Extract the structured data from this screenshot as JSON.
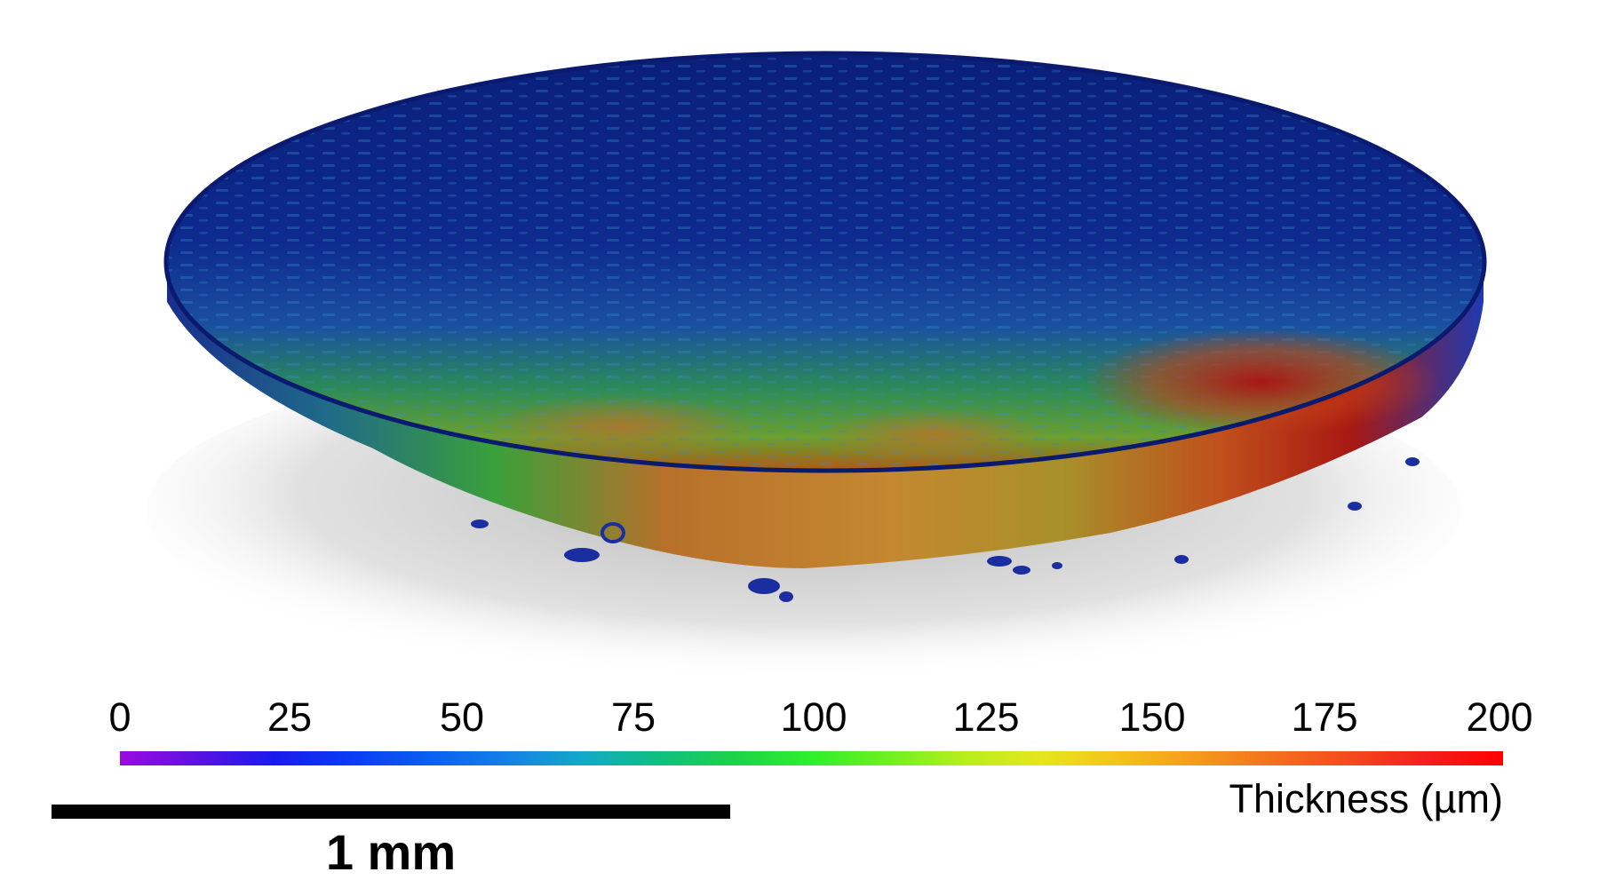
{
  "colorbar": {
    "ticks": [
      "0",
      "25",
      "50",
      "75",
      "100",
      "125",
      "150",
      "175",
      "200"
    ],
    "range": [
      0,
      200
    ],
    "colors": [
      "#9b0be0",
      "#5b12e0",
      "#1a1aee",
      "#0a3cf5",
      "#0a5ef0",
      "#1280e8",
      "#14a8c8",
      "#0fbf80",
      "#1ed24a",
      "#2ef02a",
      "#6ef022",
      "#b8ee1c",
      "#e6e61c",
      "#f5c21c",
      "#f59a1c",
      "#f5701c",
      "#f54a1c",
      "#f51e1c",
      "#ff0000"
    ],
    "title": "Thickness (µm)"
  },
  "scale_bar": {
    "label": "1 mm"
  },
  "sample": {
    "colors": {
      "low": "#0a1f7a",
      "mid": "#1e9a3a",
      "high": "#b81e10",
      "shadow": "#b5b5b5"
    }
  }
}
